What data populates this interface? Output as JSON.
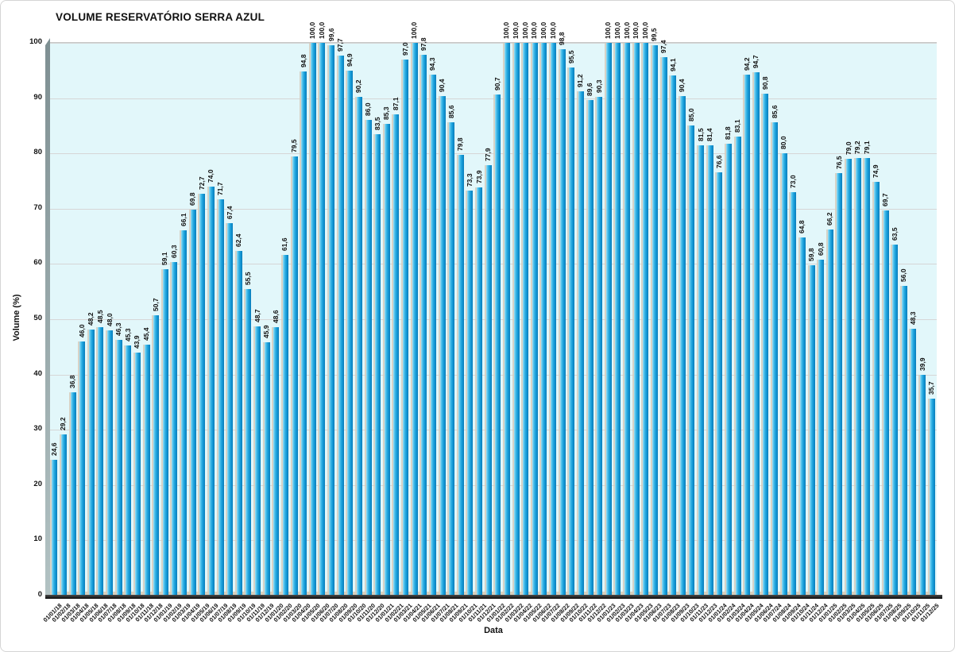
{
  "chart_data": {
    "type": "bar",
    "title": "VOLUME RESERVATÓRIO SERRA AZUL",
    "xlabel": "Data",
    "ylabel": "Volume (%)",
    "ylim": [
      0,
      100
    ],
    "yticks": [
      0,
      10,
      20,
      30,
      40,
      50,
      60,
      70,
      80,
      90,
      100
    ],
    "ytick_labels": [
      "0",
      "10",
      "20",
      "30",
      "40",
      "50",
      "60",
      "70",
      "80",
      "90",
      "100"
    ],
    "grid": true,
    "legend_position": "none",
    "plot_bg_color": "#e2f7fa",
    "bar_color": "#1ea6e0",
    "bar_gradient": [
      "#9bdef6",
      "#189fdb",
      "#0a7cba"
    ],
    "categories": [
      "01/01/18",
      "01/02/18",
      "01/03/18",
      "01/04/18",
      "01/05/18",
      "01/06/18",
      "01/07/18",
      "01/08/18",
      "01/09/18",
      "01/10/18",
      "01/11/18",
      "01/12/18",
      "01/01/19",
      "01/02/19",
      "01/03/19",
      "01/04/19",
      "01/05/19",
      "01/06/19",
      "01/07/19",
      "01/08/19",
      "01/09/19",
      "01/10/19",
      "01/11/19",
      "01/12/19",
      "01/01/20",
      "01/02/20",
      "01/03/20",
      "01/04/20",
      "01/05/20",
      "01/06/20",
      "01/07/20",
      "01/08/20",
      "01/09/20",
      "01/10/20",
      "01/11/20",
      "01/12/20",
      "01/01/21",
      "01/02/21",
      "01/03/21",
      "01/04/21",
      "01/05/21",
      "01/06/21",
      "01/07/21",
      "01/08/21",
      "01/09/21",
      "01/10/21",
      "01/11/21",
      "01/12/21",
      "01/01/22",
      "01/02/22",
      "01/03/22",
      "01/04/22",
      "01/05/22",
      "01/06/22",
      "01/07/22",
      "01/08/22",
      "01/09/22",
      "01/10/22",
      "01/11/22",
      "01/12/22",
      "01/01/23",
      "01/02/23",
      "01/03/23",
      "01/04/23",
      "01/05/23",
      "01/06/23",
      "01/07/23",
      "01/08/23",
      "01/09/23",
      "01/10/23",
      "01/11/23",
      "01/12/23",
      "01/01/24",
      "01/02/24",
      "01/03/24",
      "01/04/24",
      "01/05/24",
      "01/06/24",
      "01/07/24",
      "01/08/24",
      "01/09/24",
      "01/10/24",
      "01/11/24",
      "01/12/24",
      "01/01/25",
      "01/02/25",
      "01/03/25",
      "01/04/25",
      "01/05/25",
      "01/06/25",
      "01/07/25",
      "01/08/25",
      "01/09/25",
      "01/10/25",
      "01/11/25",
      "01/12/25"
    ],
    "values": [
      24.6,
      29.2,
      36.8,
      46.0,
      48.2,
      48.5,
      48.0,
      46.3,
      45.3,
      43.9,
      45.4,
      50.7,
      59.1,
      60.3,
      66.1,
      69.8,
      72.7,
      74.0,
      71.7,
      67.4,
      62.4,
      55.5,
      48.7,
      45.9,
      48.6,
      61.6,
      79.5,
      94.8,
      100.0,
      100.0,
      99.6,
      97.7,
      94.9,
      90.2,
      86.0,
      83.5,
      85.3,
      87.1,
      97.0,
      100.0,
      97.8,
      94.3,
      90.4,
      85.6,
      79.8,
      73.3,
      73.9,
      77.9,
      90.7,
      100.0,
      100.0,
      100.0,
      100.0,
      100.0,
      100.0,
      98.8,
      95.5,
      91.2,
      89.6,
      90.3,
      100.0,
      100.0,
      100.0,
      100.0,
      100.0,
      99.5,
      97.4,
      94.1,
      90.4,
      85.0,
      81.5,
      81.4,
      76.6,
      81.8,
      83.1,
      94.2,
      94.7,
      90.8,
      85.6,
      80.0,
      73.0,
      64.8,
      59.8,
      60.8,
      66.2,
      76.5,
      79.0,
      79.2,
      79.1,
      74.9,
      69.7,
      63.5,
      56.0,
      48.3,
      39.9,
      35.7
    ],
    "value_labels": [
      "24,6",
      "29,2",
      "36,8",
      "46,0",
      "48,2",
      "48,5",
      "48,0",
      "46,3",
      "45,3",
      "43,9",
      "45,4",
      "50,7",
      "59,1",
      "60,3",
      "66,1",
      "69,8",
      "72,7",
      "74,0",
      "71,7",
      "67,4",
      "62,4",
      "55,5",
      "48,7",
      "45,9",
      "48,6",
      "61,6",
      "79,5",
      "94,8",
      "100,0",
      "100,0",
      "99,6",
      "97,7",
      "94,9",
      "90,2",
      "86,0",
      "83,5",
      "85,3",
      "87,1",
      "97,0",
      "100,0",
      "97,8",
      "94,3",
      "90,4",
      "85,6",
      "79,8",
      "73,3",
      "73,9",
      "77,9",
      "90,7",
      "100,0",
      "100,0",
      "100,0",
      "100,0",
      "100,0",
      "100,0",
      "98,8",
      "95,5",
      "91,2",
      "89,6",
      "90,3",
      "100,0",
      "100,0",
      "100,0",
      "100,0",
      "100,0",
      "99,5",
      "97,4",
      "94,1",
      "90,4",
      "85,0",
      "81,5",
      "81,4",
      "76,6",
      "81,8",
      "83,1",
      "94,2",
      "94,7",
      "90,8",
      "85,6",
      "80,0",
      "73,0",
      "64,8",
      "59,8",
      "60,8",
      "66,2",
      "76,5",
      "79,0",
      "79,2",
      "79,1",
      "74,9",
      "69,7",
      "63,5",
      "56,0",
      "48,3",
      "39,9",
      "35,7"
    ]
  }
}
